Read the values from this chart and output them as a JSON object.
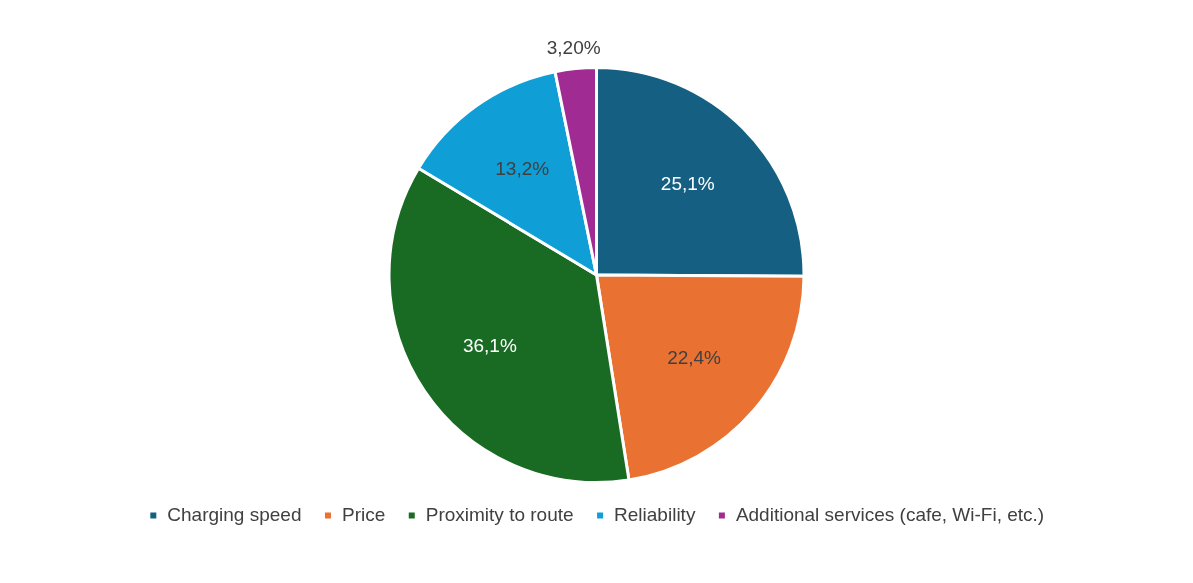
{
  "chart_data": {
    "type": "pie",
    "categories": [
      "Charging speed",
      "Price",
      "Proximity to route",
      "Reliability",
      "Additional services (cafe, Wi-Fi, etc.)"
    ],
    "values": [
      25.1,
      22.4,
      36.1,
      13.2,
      3.2
    ],
    "colors": [
      "#156082",
      "#e97132",
      "#196b24",
      "#0f9ed5",
      "#a02b93"
    ],
    "value_labels": [
      "25,1%",
      "22,4%",
      "36,1%",
      "13,2%",
      "3,20%"
    ],
    "legend": "bottom"
  }
}
